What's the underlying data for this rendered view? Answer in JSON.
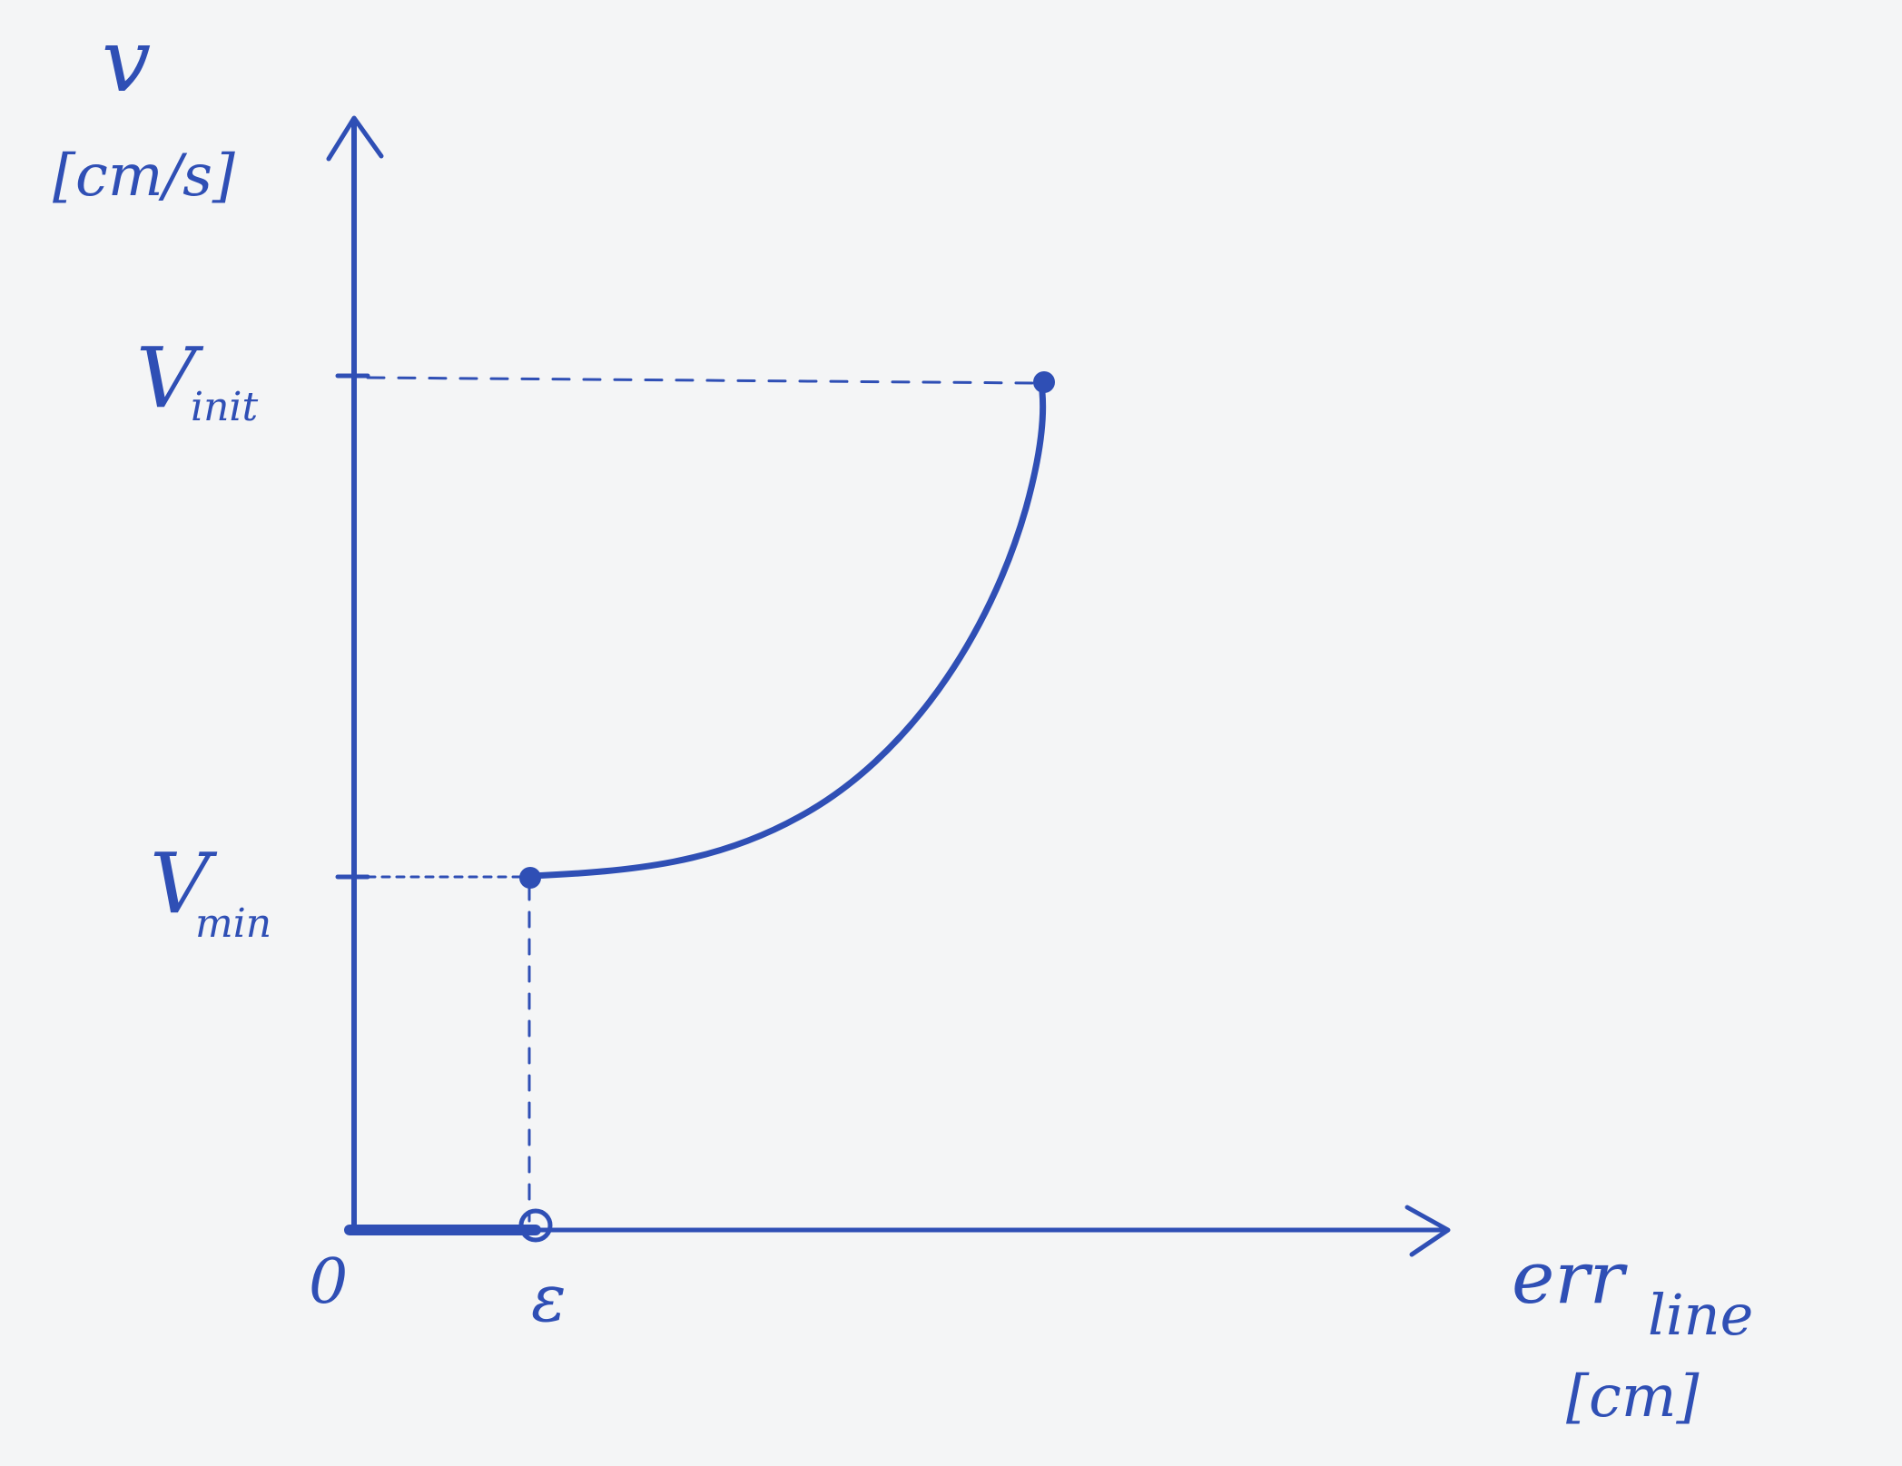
{
  "axes": {
    "y_label": "v",
    "y_unit": "[cm/s]",
    "x_label": "err",
    "x_subscript": "line",
    "x_unit": "[cm]",
    "origin_label": "0"
  },
  "ticks": {
    "v_init_main": "V",
    "v_init_sub": "init",
    "v_min_main": "V",
    "v_min_sub": "min",
    "epsilon": "ε"
  },
  "colors": {
    "ink": "#2f4fb5",
    "paper": "#f4f5f6"
  }
}
